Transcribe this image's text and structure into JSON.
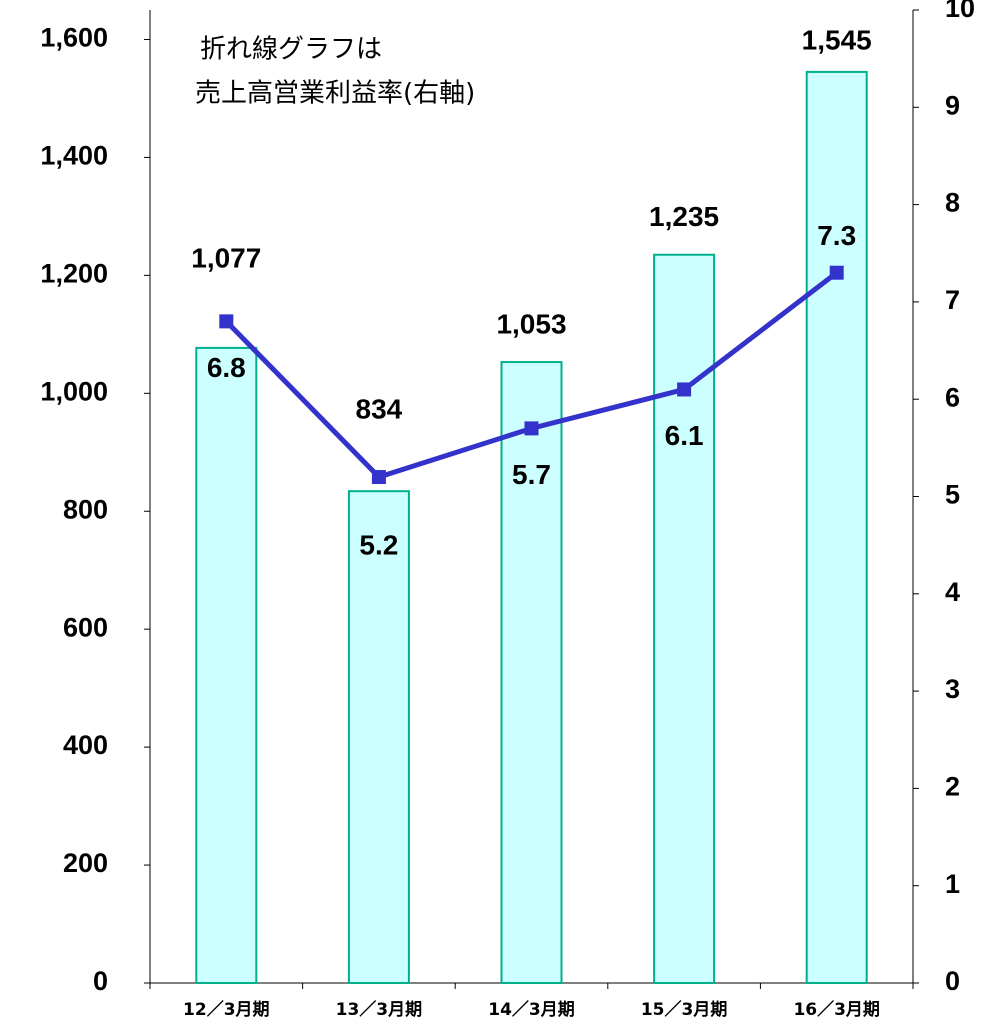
{
  "chart_data": {
    "type": "bar-line",
    "annotation": [
      "折れ線グラフは",
      "売上高営業利益率(右軸)"
    ],
    "categories": [
      "12／3月期",
      "13／3月期",
      "14／3月期",
      "15／3月期",
      "16／3月期"
    ],
    "series": [
      {
        "type": "bar",
        "values": [
          1077,
          834,
          1053,
          1235,
          1545
        ],
        "value_labels": [
          "1,077",
          "834",
          "1,053",
          "1,235",
          "1,545"
        ],
        "color": "#ccffff",
        "edge_color": "#00b08a"
      },
      {
        "type": "line",
        "axis": "y2",
        "values": [
          6.8,
          5.2,
          5.7,
          6.1,
          7.3
        ],
        "color": "#3333cc"
      }
    ],
    "ylim": [
      0,
      1650
    ],
    "yticks": [
      0,
      200,
      400,
      600,
      800,
      {
        "value": 1000,
        "label": "1,000"
      },
      {
        "value": 1200,
        "label": "1,200"
      },
      {
        "value": 1400,
        "label": "1,400"
      },
      {
        "value": 1600,
        "label": "1,600"
      }
    ],
    "y2lim": [
      0,
      10
    ],
    "y2ticks": [
      0,
      1,
      2,
      3,
      4,
      5,
      6,
      7,
      8,
      9,
      10
    ],
    "annotation_color": "#1f1fd6"
  }
}
